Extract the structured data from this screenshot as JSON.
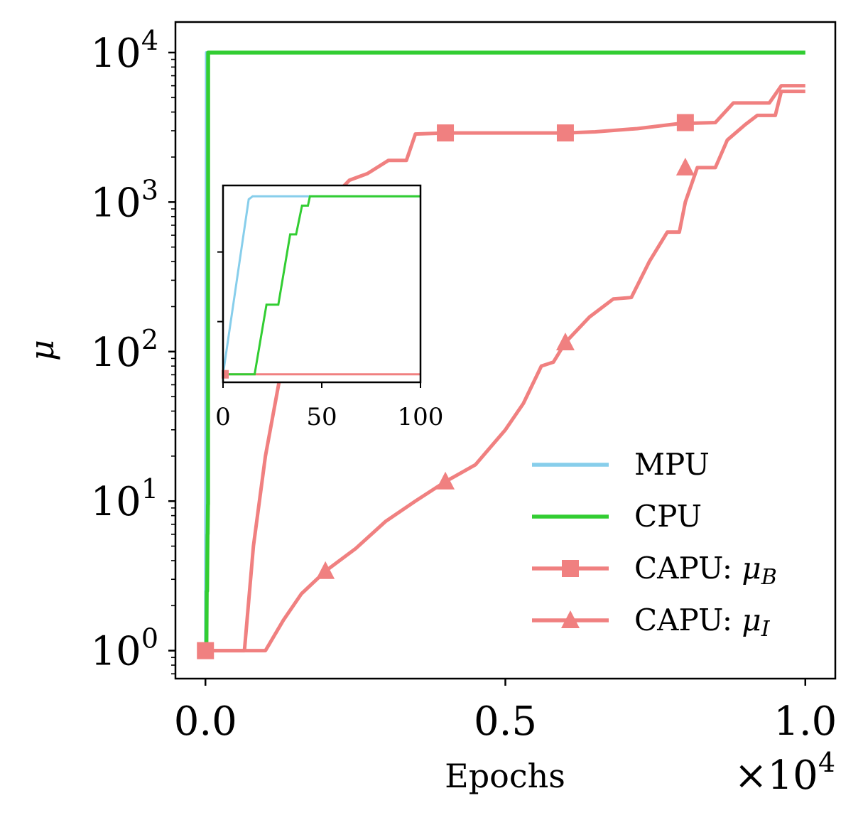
{
  "colors": {
    "mpu": "#87ceeb",
    "cpu": "#32cd32",
    "capu": "#f08080",
    "axis": "#000000",
    "background": "#ffffff"
  },
  "chart_data": {
    "type": "line",
    "xlabel": "Epochs",
    "ylabel": "μ",
    "x_offset_label": "×10^4",
    "x_scale": "linear",
    "y_scale": "log",
    "xlim": [
      -500,
      10500
    ],
    "ylim": [
      0.65,
      16000
    ],
    "x_ticks": [
      {
        "value": 0,
        "label": "0.0"
      },
      {
        "value": 5000,
        "label": "0.5"
      },
      {
        "value": 10000,
        "label": "1.0"
      }
    ],
    "y_ticks": [
      {
        "value": 1,
        "base": "10",
        "exp": "0"
      },
      {
        "value": 10,
        "base": "10",
        "exp": "1"
      },
      {
        "value": 100,
        "base": "10",
        "exp": "2"
      },
      {
        "value": 1000,
        "base": "10",
        "exp": "3"
      },
      {
        "value": 10000,
        "base": "10",
        "exp": "4"
      }
    ],
    "grid": false,
    "legend_position": "lower-right",
    "series": [
      {
        "name": "MPU",
        "color": "#87ceeb",
        "marker": "none",
        "points": [
          [
            0,
            1
          ],
          [
            15,
            10000
          ],
          [
            10000,
            10000
          ]
        ]
      },
      {
        "name": "CPU",
        "color": "#32cd32",
        "marker": "none",
        "points": [
          [
            0,
            1
          ],
          [
            16,
            1
          ],
          [
            22,
            2.5
          ],
          [
            28,
            2.5
          ],
          [
            35,
            6
          ],
          [
            37,
            6
          ],
          [
            42,
            9.5
          ],
          [
            44,
            9.5
          ],
          [
            45,
            10000
          ],
          [
            10000,
            10000
          ]
        ]
      },
      {
        "name": "CAPU: μ_B",
        "color": "#f08080",
        "marker": "square",
        "marker_points": [
          [
            0,
            1
          ],
          [
            4000,
            2900
          ],
          [
            6000,
            2900
          ],
          [
            8000,
            3400
          ]
        ],
        "points": [
          [
            0,
            1
          ],
          [
            650,
            1
          ],
          [
            800,
            5
          ],
          [
            1000,
            20
          ],
          [
            1300,
            90
          ],
          [
            1600,
            300
          ],
          [
            1850,
            650
          ],
          [
            2100,
            1050
          ],
          [
            2400,
            1400
          ],
          [
            2700,
            1550
          ],
          [
            3050,
            1900
          ],
          [
            3350,
            1900
          ],
          [
            3500,
            2850
          ],
          [
            4000,
            2900
          ],
          [
            5000,
            2900
          ],
          [
            6000,
            2900
          ],
          [
            6500,
            2950
          ],
          [
            7200,
            3100
          ],
          [
            7900,
            3350
          ],
          [
            8500,
            3400
          ],
          [
            8800,
            4600
          ],
          [
            9400,
            4600
          ],
          [
            9600,
            6000
          ],
          [
            10000,
            6000
          ]
        ]
      },
      {
        "name": "CAPU: μ_I",
        "color": "#f08080",
        "marker": "triangle",
        "marker_points": [
          [
            2000,
            3.4
          ],
          [
            4000,
            13.5
          ],
          [
            6000,
            115
          ],
          [
            8000,
            1700
          ]
        ],
        "points": [
          [
            0,
            1
          ],
          [
            1000,
            1
          ],
          [
            1300,
            1.6
          ],
          [
            1600,
            2.4
          ],
          [
            2000,
            3.4
          ],
          [
            2500,
            4.8
          ],
          [
            3000,
            7.3
          ],
          [
            3500,
            10
          ],
          [
            4000,
            13.5
          ],
          [
            4500,
            17.5
          ],
          [
            5000,
            30
          ],
          [
            5300,
            45
          ],
          [
            5600,
            80
          ],
          [
            5800,
            85
          ],
          [
            6000,
            115
          ],
          [
            6400,
            170
          ],
          [
            6800,
            225
          ],
          [
            7100,
            230
          ],
          [
            7400,
            400
          ],
          [
            7700,
            630
          ],
          [
            7900,
            630
          ],
          [
            8000,
            1000
          ],
          [
            8200,
            1700
          ],
          [
            8500,
            1700
          ],
          [
            8700,
            2600
          ],
          [
            9000,
            3300
          ],
          [
            9200,
            3800
          ],
          [
            9500,
            3800
          ],
          [
            9600,
            5500
          ],
          [
            10000,
            5500
          ]
        ]
      }
    ],
    "legend": [
      {
        "label": "MPU",
        "label_main": "MPU",
        "math_base": "",
        "math_sub": "",
        "color": "#87ceeb",
        "marker": "none"
      },
      {
        "label": "CPU",
        "label_main": "CPU",
        "math_base": "",
        "math_sub": "",
        "color": "#32cd32",
        "marker": "none"
      },
      {
        "label": "CAPU: μB",
        "label_main": "CAPU: ",
        "math_base": "μ",
        "math_sub": "B",
        "color": "#f08080",
        "marker": "square"
      },
      {
        "label": "CAPU: μI",
        "label_main": "CAPU: ",
        "math_base": "μ",
        "math_sub": "I",
        "color": "#f08080",
        "marker": "triangle"
      }
    ],
    "inset": {
      "xlim": [
        0,
        100
      ],
      "ylim": [
        0.9,
        12
      ],
      "y_scale": "log",
      "x_ticks": [
        {
          "value": 0,
          "label": "0"
        },
        {
          "value": 50,
          "label": "50"
        },
        {
          "value": 100,
          "label": "100"
        }
      ],
      "y_tick_values": [
        2,
        5
      ],
      "series": [
        {
          "name": "MPU",
          "color": "#87ceeb",
          "points": [
            [
              0,
              1
            ],
            [
              13,
              10
            ],
            [
              15,
              10.4
            ],
            [
              100,
              10.4
            ]
          ]
        },
        {
          "name": "CPU",
          "color": "#32cd32",
          "points": [
            [
              0,
              1
            ],
            [
              16,
              1
            ],
            [
              22,
              2.5
            ],
            [
              28,
              2.5
            ],
            [
              34,
              6.3
            ],
            [
              37,
              6.3
            ],
            [
              40,
              9.2
            ],
            [
              43,
              9.2
            ],
            [
              44,
              10.4
            ],
            [
              100,
              10.4
            ]
          ]
        },
        {
          "name": "CAPU",
          "color": "#f08080",
          "points": [
            [
              0,
              1
            ],
            [
              100,
              1
            ]
          ]
        }
      ]
    }
  }
}
